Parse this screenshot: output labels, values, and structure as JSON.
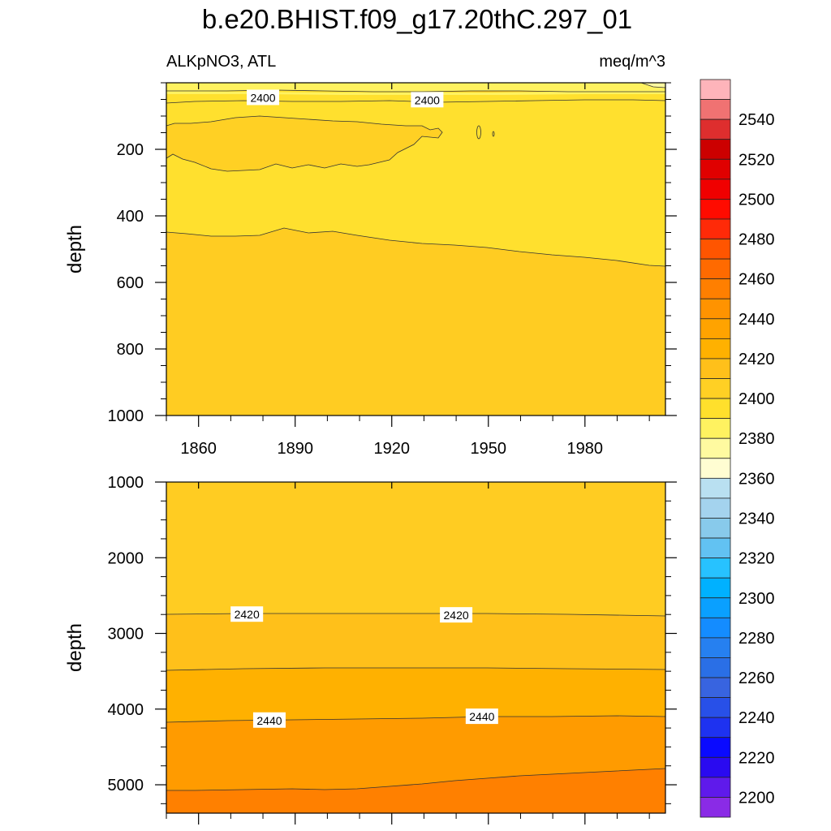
{
  "title": "b.e20.BHIST.f09_g17.20thC.297_01",
  "variable_label": "ALKpNO3, ATL",
  "units_label": "meq/m^3",
  "chart_data": [
    {
      "type": "contour",
      "panel": "upper",
      "ylabel": "depth",
      "xlim": [
        1850,
        2005
      ],
      "ylim": [
        0,
        1000
      ],
      "y_inverted": true,
      "x_ticks": [
        1860,
        1890,
        1920,
        1950,
        1980
      ],
      "x_tick_labels": [
        "1860",
        "1890",
        "1920",
        "1950",
        "1980"
      ],
      "y_ticks": [
        200,
        400,
        600,
        800,
        1000
      ],
      "y_tick_labels": [
        "200",
        "400",
        "600",
        "800",
        "1000"
      ],
      "contour_labels": [
        {
          "text": "2400",
          "x": 1880,
          "y": 45
        },
        {
          "text": "2400",
          "x": 1931,
          "y": 52
        }
      ]
    },
    {
      "type": "contour",
      "panel": "lower",
      "ylabel": "depth",
      "xlim": [
        1850,
        2005
      ],
      "ylim": [
        1000,
        5375
      ],
      "y_inverted": true,
      "y_ticks": [
        1000,
        2000,
        3000,
        4000,
        5000
      ],
      "y_tick_labels": [
        "1000",
        "2000",
        "3000",
        "4000",
        "5000"
      ],
      "contour_labels": [
        {
          "text": "2420",
          "x": 1875,
          "y": 2750
        },
        {
          "text": "2420",
          "x": 1940,
          "y": 2760
        },
        {
          "text": "2440",
          "x": 1882,
          "y": 4150
        },
        {
          "text": "2440",
          "x": 1948,
          "y": 4100
        }
      ]
    }
  ],
  "colorbar": {
    "tick_labels": [
      "2540",
      "2520",
      "2500",
      "2480",
      "2460",
      "2440",
      "2420",
      "2400",
      "2380",
      "2360",
      "2340",
      "2320",
      "2300",
      "2280",
      "2260",
      "2240",
      "2220",
      "2200"
    ],
    "colors": [
      "#feb4ba",
      "#f07272",
      "#de2e2e",
      "#cc0000",
      "#e00000",
      "#f00000",
      "#ff0b00",
      "#ff2a08",
      "#ff5500",
      "#ff6a00",
      "#ff7f00",
      "#ff9300",
      "#ffa300",
      "#ffb100",
      "#ffc01a",
      "#ffd024",
      "#ffe02c",
      "#fff260",
      "#fffaa0",
      "#fffdd2",
      "#b9e0f1",
      "#a4d3ee",
      "#88caeb",
      "#62c2f2",
      "#27c2ff",
      "#00b1ff",
      "#0aa0ff",
      "#148cff",
      "#2680f0",
      "#2a6fe6",
      "#3864e0",
      "#2850e8",
      "#1e32f0",
      "#0a0aff",
      "#2a0af0",
      "#5f1aeb",
      "#8a2be6"
    ]
  }
}
